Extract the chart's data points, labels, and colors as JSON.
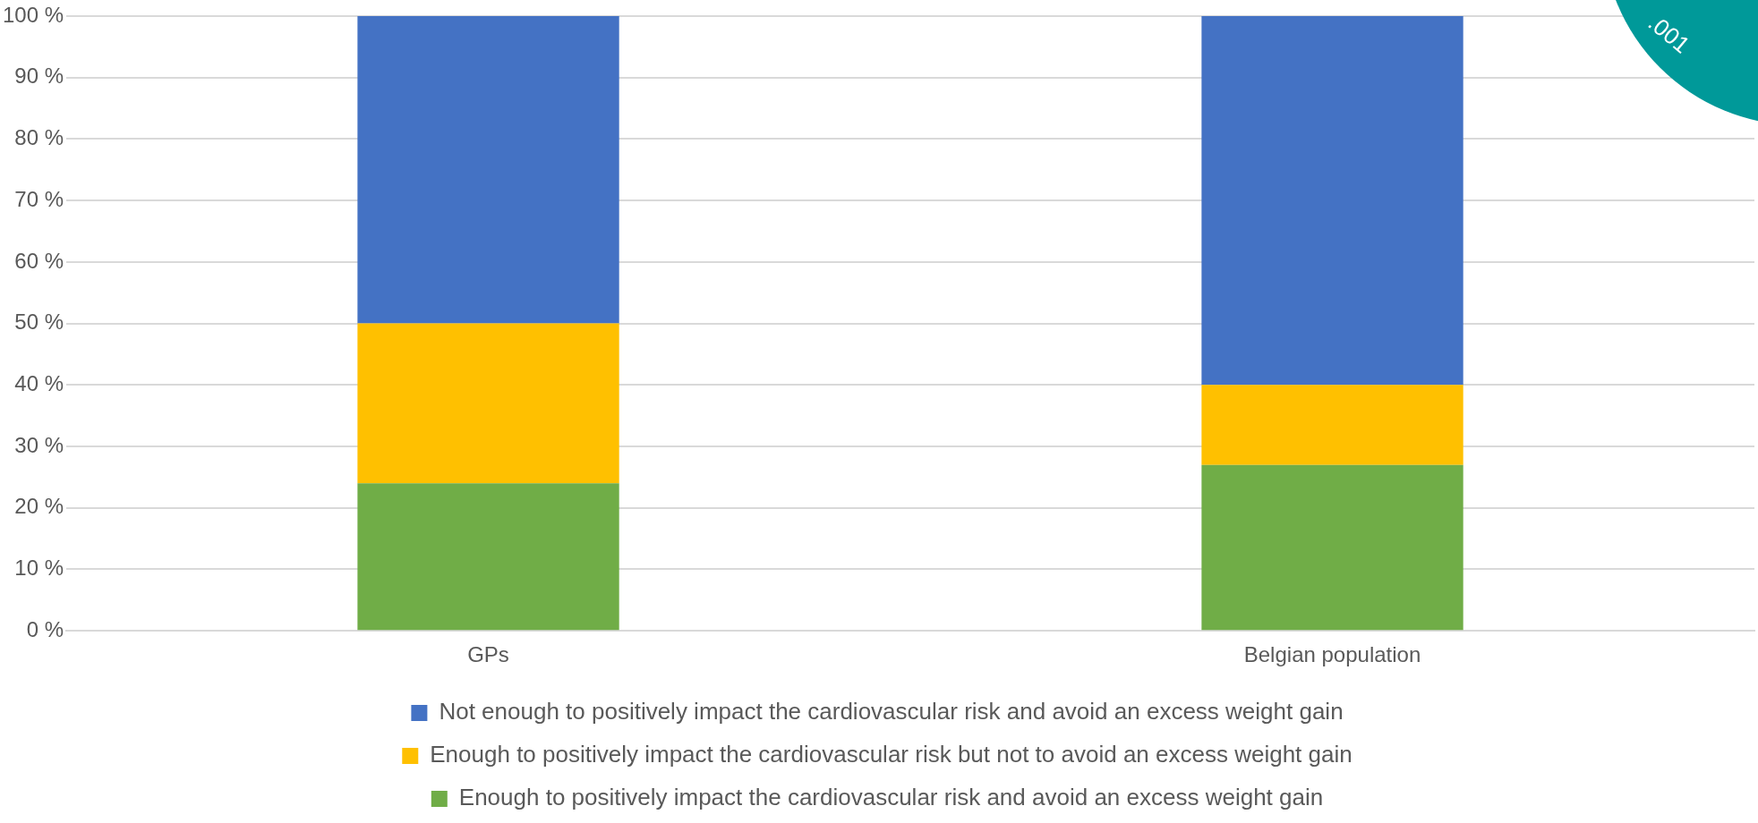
{
  "chart_data": {
    "type": "bar",
    "stacked": true,
    "categories": [
      "GPs",
      "Belgian population"
    ],
    "series": [
      {
        "name": "Enough to positively impact the cardiovascular risk and avoid an excess weight gain",
        "color": "#70ad47",
        "values": [
          24,
          27
        ]
      },
      {
        "name": "Enough to positively impact the cardiovascular risk but not to avoid an excess weight gain",
        "color": "#ffc000",
        "values": [
          26,
          13
        ]
      },
      {
        "name": "Not enough to positively impact the cardiovascular risk and avoid an excess weight gain",
        "color": "#4472c4",
        "values": [
          50,
          60
        ]
      }
    ],
    "ylim": [
      0,
      100
    ],
    "yticks": [
      {
        "value": 0,
        "label": "0 %"
      },
      {
        "value": 10,
        "label": "10 %"
      },
      {
        "value": 20,
        "label": "20 %"
      },
      {
        "value": 30,
        "label": "30 %"
      },
      {
        "value": 40,
        "label": "40 %"
      },
      {
        "value": 50,
        "label": "50 %"
      },
      {
        "value": 60,
        "label": "60 %"
      },
      {
        "value": 70,
        "label": "70 %"
      },
      {
        "value": 80,
        "label": "80 %"
      },
      {
        "value": 90,
        "label": "90 %"
      },
      {
        "value": 100,
        "label": "100 %"
      }
    ],
    "grid": "y",
    "legend": "bottom",
    "annotations": [
      ".001"
    ]
  }
}
